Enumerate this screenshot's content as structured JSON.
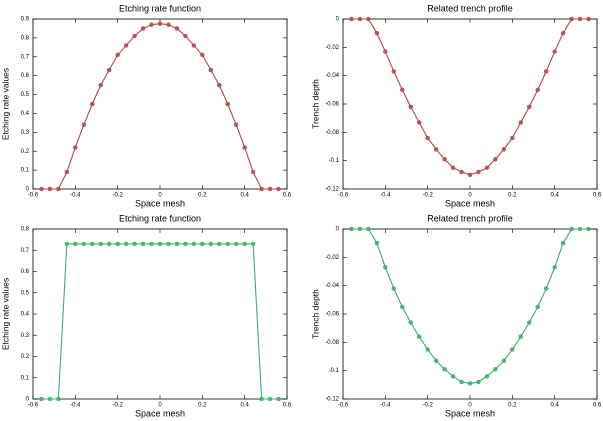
{
  "chart_data": [
    {
      "type": "line",
      "title": "Etching rate function",
      "x_label": "Space mesh",
      "y_label": "Etching rate values",
      "x": [
        -0.56,
        -0.52,
        -0.48,
        -0.44,
        -0.4,
        -0.36,
        -0.32,
        -0.28,
        -0.24,
        -0.2,
        -0.16,
        -0.12,
        -0.08,
        -0.04,
        0,
        0.04,
        0.08,
        0.12,
        0.16,
        0.2,
        0.24,
        0.28,
        0.32,
        0.36,
        0.4,
        0.44,
        0.48,
        0.52,
        0.56
      ],
      "series": [
        {
          "color": "#b5474b",
          "values": [
            0,
            0,
            0,
            0.09,
            0.22,
            0.34,
            0.45,
            0.55,
            0.63,
            0.71,
            0.76,
            0.81,
            0.85,
            0.87,
            0.875,
            0.87,
            0.85,
            0.81,
            0.76,
            0.71,
            0.63,
            0.55,
            0.45,
            0.34,
            0.22,
            0.09,
            0,
            0,
            0
          ]
        }
      ],
      "xlim": [
        -0.6,
        0.6
      ],
      "xticks": [
        -0.6,
        -0.4,
        -0.2,
        0,
        0.2,
        0.4,
        0.6
      ],
      "ylim": [
        0,
        0.9
      ],
      "yticks": [
        0,
        0.1,
        0.2,
        0.3,
        0.4,
        0.5,
        0.6,
        0.7,
        0.8,
        0.9
      ]
    },
    {
      "type": "line",
      "title": "Related trench profile",
      "x_label": "Space mesh",
      "y_label": "Trench depth",
      "x": [
        -0.56,
        -0.52,
        -0.48,
        -0.44,
        -0.4,
        -0.36,
        -0.32,
        -0.28,
        -0.24,
        -0.2,
        -0.16,
        -0.12,
        -0.08,
        -0.04,
        0,
        0.04,
        0.08,
        0.12,
        0.16,
        0.2,
        0.24,
        0.28,
        0.32,
        0.36,
        0.4,
        0.44,
        0.48,
        0.52,
        0.56
      ],
      "series": [
        {
          "color": "#b5474b",
          "values": [
            0,
            0,
            0,
            -0.01,
            -0.023,
            -0.037,
            -0.05,
            -0.062,
            -0.073,
            -0.084,
            -0.092,
            -0.099,
            -0.105,
            -0.108,
            -0.11,
            -0.108,
            -0.105,
            -0.099,
            -0.092,
            -0.084,
            -0.073,
            -0.062,
            -0.05,
            -0.037,
            -0.023,
            -0.01,
            0,
            0,
            0
          ]
        }
      ],
      "xlim": [
        -0.6,
        0.6
      ],
      "xticks": [
        -0.6,
        -0.4,
        -0.2,
        0,
        0.2,
        0.4,
        0.6
      ],
      "ylim": [
        -0.12,
        0
      ],
      "yticks": [
        -0.12,
        -0.1,
        -0.08,
        -0.06,
        -0.04,
        -0.02,
        0
      ]
    },
    {
      "type": "line",
      "title": "Etching rate function",
      "x_label": "Space mesh",
      "y_label": "Etching rate values",
      "x": [
        -0.56,
        -0.52,
        -0.48,
        -0.44,
        -0.4,
        -0.36,
        -0.32,
        -0.28,
        -0.24,
        -0.2,
        -0.16,
        -0.12,
        -0.08,
        -0.04,
        0,
        0.04,
        0.08,
        0.12,
        0.16,
        0.2,
        0.24,
        0.28,
        0.32,
        0.36,
        0.4,
        0.44,
        0.48,
        0.52,
        0.56
      ],
      "series": [
        {
          "color": "#3fae6a",
          "values": [
            0,
            0,
            0,
            0.73,
            0.73,
            0.73,
            0.73,
            0.73,
            0.73,
            0.73,
            0.73,
            0.73,
            0.73,
            0.73,
            0.73,
            0.73,
            0.73,
            0.73,
            0.73,
            0.73,
            0.73,
            0.73,
            0.73,
            0.73,
            0.73,
            0.73,
            0,
            0,
            0
          ]
        }
      ],
      "xlim": [
        -0.6,
        0.6
      ],
      "xticks": [
        -0.6,
        -0.4,
        -0.2,
        0,
        0.2,
        0.4,
        0.6
      ],
      "ylim": [
        0,
        0.8
      ],
      "yticks": [
        0,
        0.1,
        0.2,
        0.3,
        0.4,
        0.5,
        0.6,
        0.7,
        0.8
      ]
    },
    {
      "type": "line",
      "title": "Related trench profile",
      "x_label": "Space mesh",
      "y_label": "Trench depth",
      "x": [
        -0.56,
        -0.52,
        -0.48,
        -0.44,
        -0.4,
        -0.36,
        -0.32,
        -0.28,
        -0.24,
        -0.2,
        -0.16,
        -0.12,
        -0.08,
        -0.04,
        0,
        0.04,
        0.08,
        0.12,
        0.16,
        0.2,
        0.24,
        0.28,
        0.32,
        0.36,
        0.4,
        0.44,
        0.48,
        0.52,
        0.56
      ],
      "series": [
        {
          "color": "#3fae6a",
          "values": [
            0,
            0,
            0,
            -0.01,
            -0.027,
            -0.042,
            -0.055,
            -0.066,
            -0.076,
            -0.085,
            -0.093,
            -0.099,
            -0.104,
            -0.108,
            -0.109,
            -0.108,
            -0.104,
            -0.099,
            -0.093,
            -0.085,
            -0.076,
            -0.066,
            -0.055,
            -0.042,
            -0.027,
            -0.01,
            0,
            0,
            0
          ]
        }
      ],
      "xlim": [
        -0.6,
        0.6
      ],
      "xticks": [
        -0.6,
        -0.4,
        -0.2,
        0,
        0.2,
        0.4,
        0.6
      ],
      "ylim": [
        -0.12,
        0
      ],
      "yticks": [
        -0.12,
        -0.1,
        -0.08,
        -0.06,
        -0.04,
        -0.02,
        0
      ]
    }
  ]
}
